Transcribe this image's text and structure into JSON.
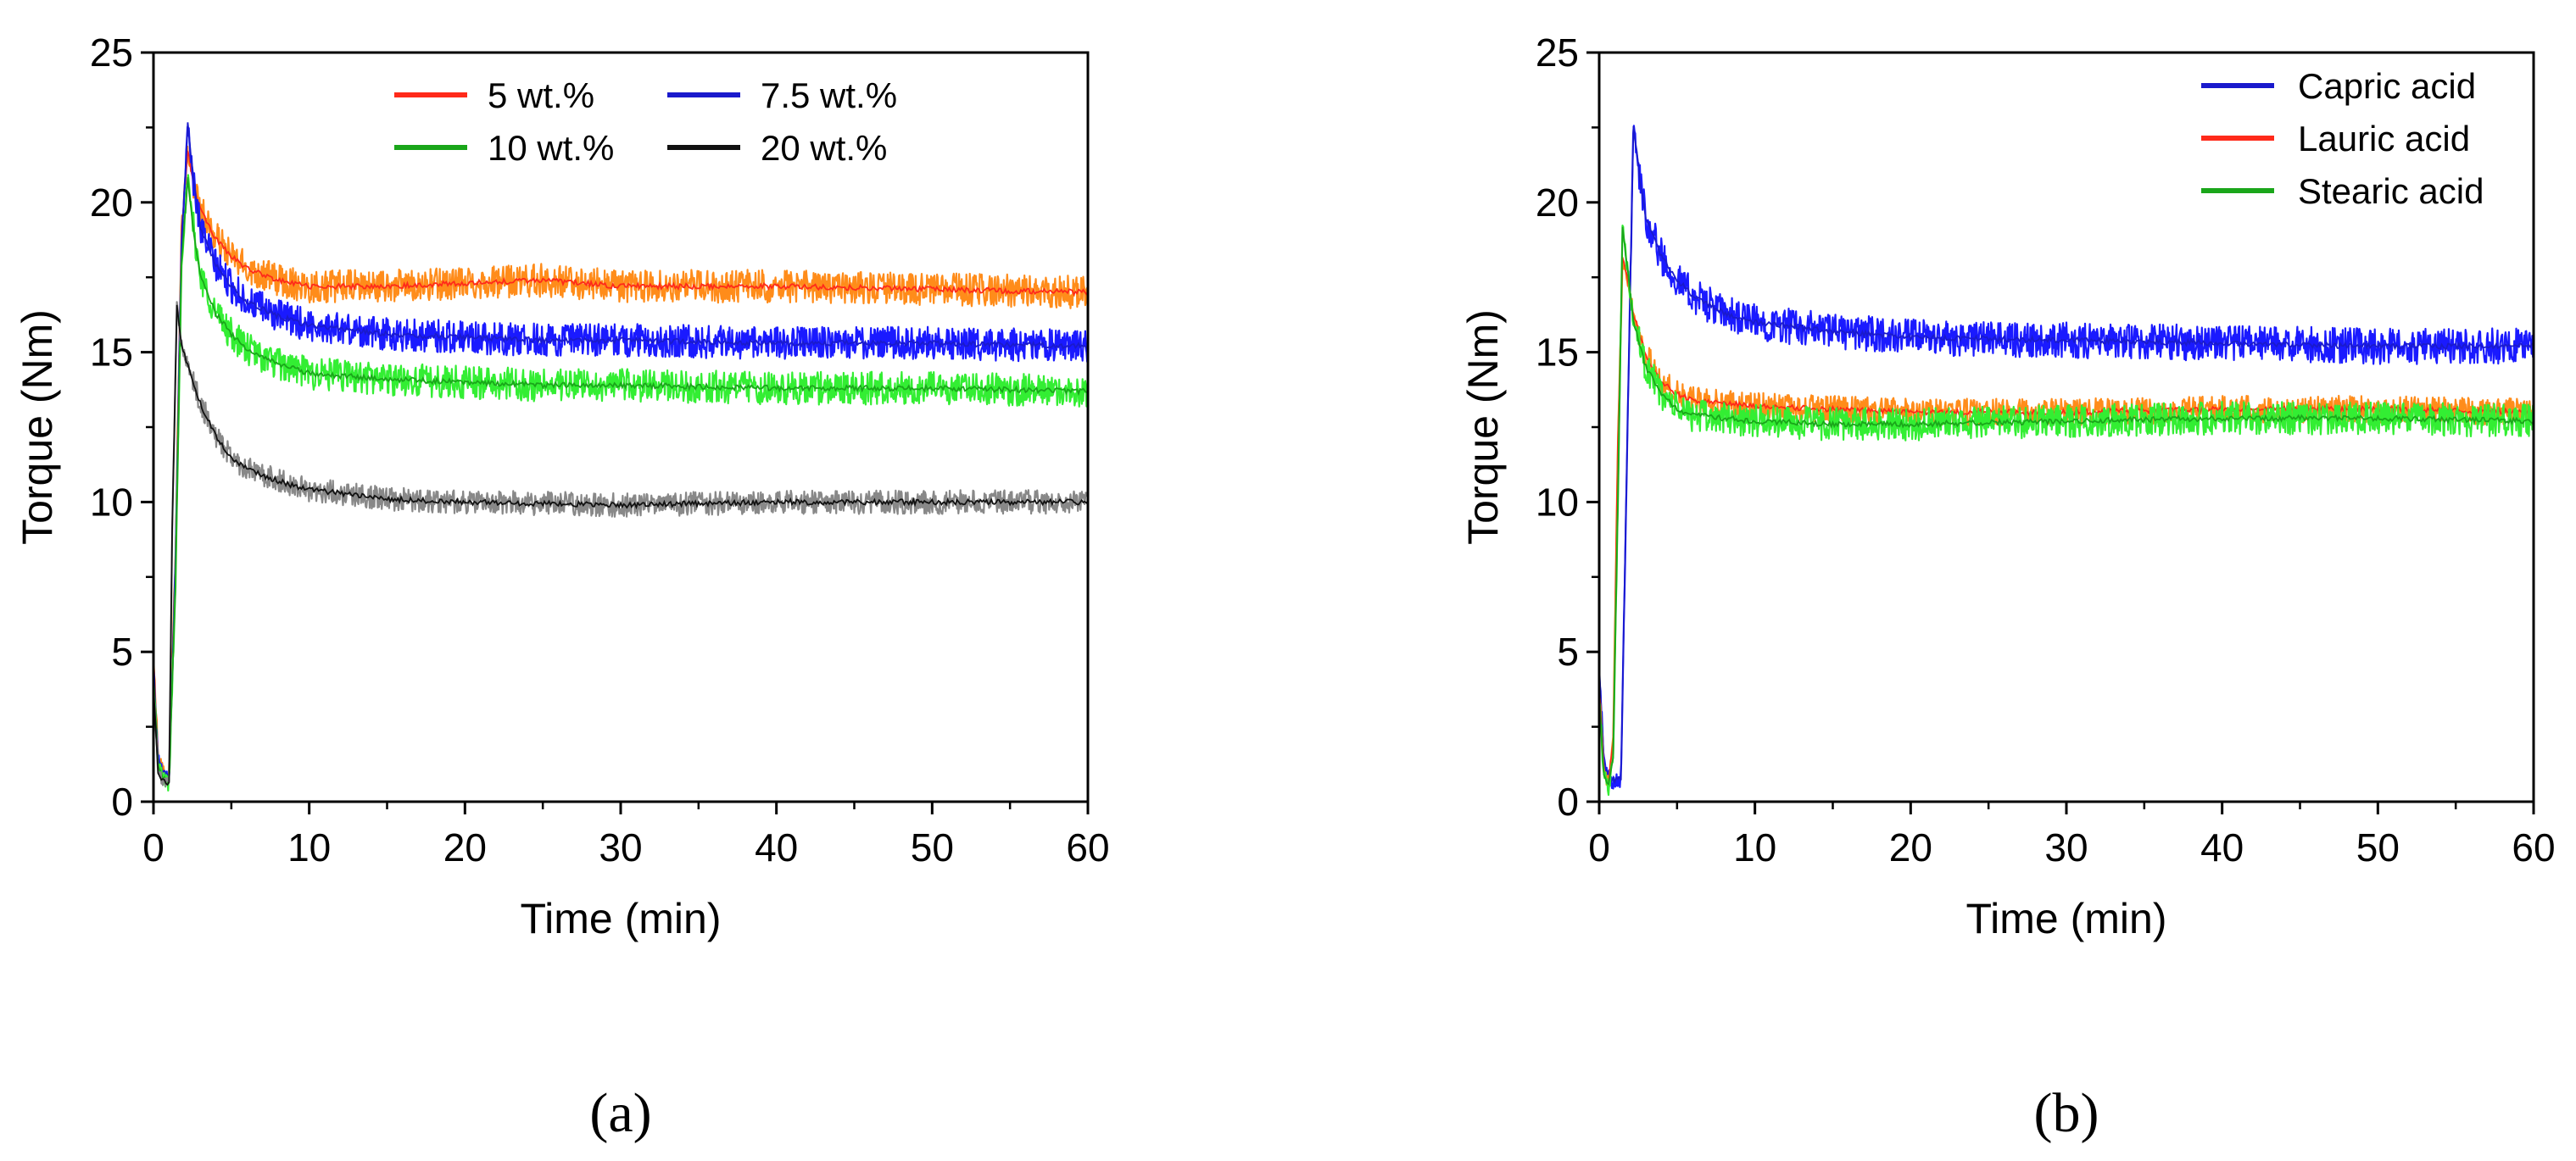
{
  "chart_data": [
    {
      "type": "line",
      "panel_label": "(a)",
      "xlabel": "Time (min)",
      "ylabel": "Torque (Nm)",
      "xlim": [
        0,
        60
      ],
      "ylim": [
        0,
        25
      ],
      "xticks": [
        0,
        10,
        20,
        30,
        40,
        50,
        60
      ],
      "yticks": [
        0,
        5,
        10,
        15,
        20,
        25
      ],
      "grid": false,
      "legend_position": "top-right",
      "series": [
        {
          "name": "5 wt.%",
          "line_color": "#ff2a1a",
          "band_color": "#ff8c1a",
          "x": [
            0,
            0.3,
            0.6,
            1.0,
            1.4,
            1.8,
            2.2,
            2.6,
            3.0,
            4.0,
            5.0,
            6.0,
            8.0,
            10.0,
            15.0,
            20.0,
            25.0,
            30.0,
            40.0,
            50.0,
            60.0
          ],
          "y": [
            4.8,
            1.5,
            1.0,
            0.9,
            8.0,
            19.0,
            21.8,
            20.5,
            19.8,
            18.8,
            18.2,
            17.8,
            17.4,
            17.2,
            17.2,
            17.3,
            17.4,
            17.2,
            17.2,
            17.1,
            17.0
          ],
          "band": 0.55
        },
        {
          "name": "7.5 wt.%",
          "line_color": "#1a1acc",
          "band_color": "#1a1aff",
          "x": [
            0,
            0.3,
            0.6,
            1.0,
            1.4,
            1.8,
            2.2,
            2.6,
            3.0,
            4.0,
            5.0,
            6.0,
            8.0,
            10.0,
            15.0,
            20.0,
            25.0,
            30.0,
            40.0,
            50.0,
            60.0
          ],
          "y": [
            4.5,
            1.4,
            1.0,
            0.8,
            7.5,
            18.5,
            22.6,
            20.6,
            19.2,
            17.9,
            17.2,
            16.7,
            16.2,
            15.9,
            15.6,
            15.5,
            15.4,
            15.4,
            15.3,
            15.3,
            15.2
          ],
          "band": 0.55
        },
        {
          "name": "10 wt.%",
          "line_color": "#1aa61a",
          "band_color": "#33ee33",
          "x": [
            0,
            0.3,
            0.6,
            1.0,
            1.4,
            1.8,
            2.2,
            2.6,
            3.0,
            4.0,
            5.0,
            6.0,
            8.0,
            10.0,
            15.0,
            20.0,
            25.0,
            30.0,
            40.0,
            50.0,
            60.0
          ],
          "y": [
            4.2,
            1.2,
            0.8,
            0.6,
            7.0,
            18.0,
            20.8,
            19.0,
            17.6,
            16.3,
            15.6,
            15.1,
            14.6,
            14.3,
            14.1,
            14.0,
            13.9,
            13.9,
            13.8,
            13.8,
            13.7
          ],
          "band": 0.55
        },
        {
          "name": "20 wt.%",
          "line_color": "#111111",
          "band_color": "#888888",
          "x": [
            0,
            0.3,
            0.6,
            1.0,
            1.2,
            1.5,
            1.8,
            2.2,
            3.0,
            4.0,
            5.0,
            6.0,
            8.0,
            10.0,
            12.0,
            15.0,
            20.0,
            30.0,
            40.0,
            50.0,
            60.0
          ],
          "y": [
            3.8,
            1.0,
            0.7,
            0.6,
            9.0,
            16.5,
            15.2,
            14.6,
            13.3,
            12.2,
            11.5,
            11.1,
            10.7,
            10.4,
            10.3,
            10.1,
            10.0,
            9.9,
            10.0,
            10.0,
            10.0
          ],
          "band": 0.4
        }
      ]
    },
    {
      "type": "line",
      "panel_label": "(b)",
      "xlabel": "Time (min)",
      "ylabel": "Torque (Nm)",
      "xlim": [
        0,
        60
      ],
      "ylim": [
        0,
        25
      ],
      "xticks": [
        0,
        10,
        20,
        30,
        40,
        50,
        60
      ],
      "yticks": [
        0,
        5,
        10,
        15,
        20,
        25
      ],
      "grid": false,
      "legend_position": "top-right",
      "series": [
        {
          "name": "Capric acid",
          "line_color": "#1a1acc",
          "band_color": "#1a1aff",
          "x": [
            0,
            0.3,
            0.6,
            1.0,
            1.4,
            1.8,
            2.2,
            2.6,
            3.0,
            4.0,
            5.0,
            6.0,
            8.0,
            10.0,
            15.0,
            20.0,
            30.0,
            40.0,
            50.0,
            60.0
          ],
          "y": [
            4.6,
            1.3,
            0.8,
            0.7,
            0.8,
            12.0,
            22.6,
            20.8,
            19.5,
            18.2,
            17.4,
            16.9,
            16.3,
            16.0,
            15.7,
            15.5,
            15.4,
            15.3,
            15.2,
            15.2
          ],
          "band": 0.6
        },
        {
          "name": "Lauric acid",
          "line_color": "#ff2a1a",
          "band_color": "#ff8c1a",
          "x": [
            0,
            0.3,
            0.6,
            0.9,
            1.2,
            1.5,
            1.8,
            2.2,
            3.0,
            4.0,
            5.0,
            6.0,
            8.0,
            10.0,
            15.0,
            20.0,
            30.0,
            40.0,
            50.0,
            60.0
          ],
          "y": [
            3.8,
            1.0,
            0.6,
            2.0,
            12.0,
            18.2,
            17.5,
            16.3,
            14.9,
            14.0,
            13.6,
            13.4,
            13.3,
            13.2,
            13.1,
            13.0,
            13.0,
            13.1,
            13.1,
            13.0
          ],
          "band": 0.45
        },
        {
          "name": "Stearic acid",
          "line_color": "#1aa61a",
          "band_color": "#33ee33",
          "x": [
            0,
            0.3,
            0.6,
            0.9,
            1.2,
            1.5,
            1.8,
            2.2,
            3.0,
            4.0,
            5.0,
            6.0,
            8.0,
            10.0,
            15.0,
            20.0,
            30.0,
            40.0,
            50.0,
            60.0
          ],
          "y": [
            3.5,
            0.9,
            0.5,
            1.5,
            10.0,
            19.2,
            17.8,
            16.0,
            14.5,
            13.6,
            13.1,
            12.9,
            12.8,
            12.7,
            12.6,
            12.6,
            12.7,
            12.8,
            12.8,
            12.7
          ],
          "band": 0.55
        }
      ]
    }
  ]
}
